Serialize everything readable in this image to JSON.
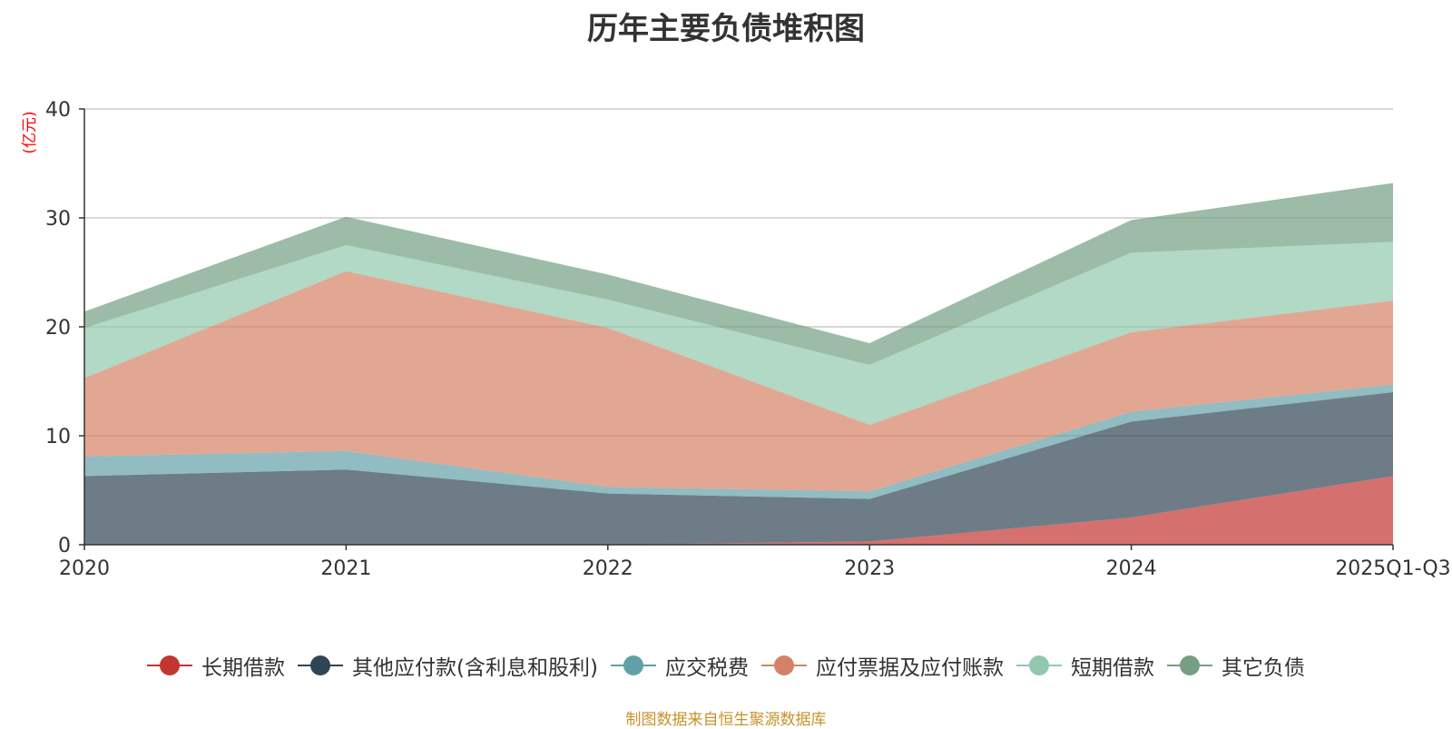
{
  "chart_data": {
    "type": "area",
    "stacked": true,
    "title": "历年主要负债堆积图",
    "ylabel": "(亿元)",
    "xlabel": "",
    "ylim": [
      0,
      40
    ],
    "yticks": [
      0,
      10,
      20,
      30,
      40
    ],
    "categories": [
      "2020",
      "2021",
      "2022",
      "2023",
      "2024",
      "2025Q1-Q3"
    ],
    "grid": true,
    "legend_position": "bottom",
    "series": [
      {
        "name": "长期借款",
        "color": "#c23531",
        "values": [
          0,
          0,
          0,
          0.3,
          2.5,
          6.3
        ]
      },
      {
        "name": "其他应付款(含利息和股利)",
        "color": "#2f4554",
        "values": [
          6.3,
          6.9,
          4.7,
          3.9,
          8.8,
          7.7
        ]
      },
      {
        "name": "应交税费",
        "color": "#61a0a8",
        "values": [
          1.8,
          1.7,
          0.6,
          0.7,
          0.9,
          0.7
        ]
      },
      {
        "name": "应付票据及应付账款",
        "color": "#d48265",
        "values": [
          7.2,
          16.5,
          14.6,
          6.1,
          7.3,
          7.7
        ]
      },
      {
        "name": "短期借款",
        "color": "#91c7ae",
        "values": [
          4.6,
          2.4,
          2.6,
          5.5,
          7.3,
          5.4
        ]
      },
      {
        "name": "其它负债",
        "color": "#749f83",
        "values": [
          1.5,
          2.6,
          2.3,
          2.0,
          3.0,
          5.4
        ]
      }
    ]
  },
  "source_note": "制图数据来自恒生聚源数据库"
}
